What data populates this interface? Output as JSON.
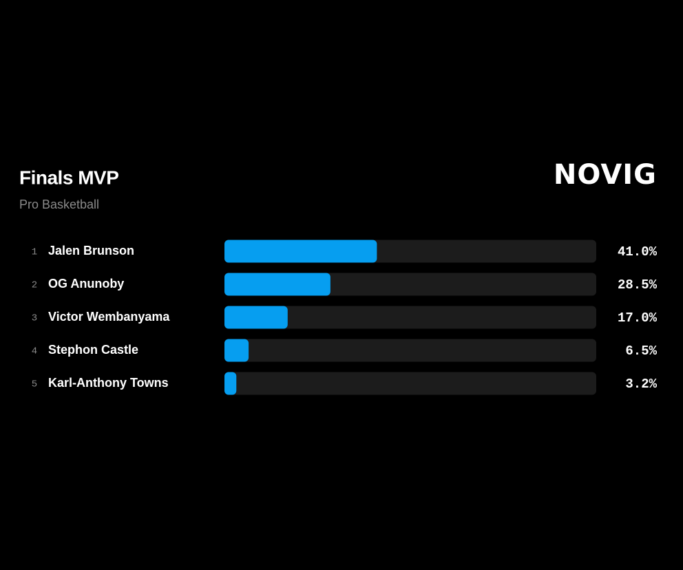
{
  "chart_data": {
    "type": "bar",
    "orientation": "horizontal",
    "title": "Finals MVP",
    "subtitle": "Pro Basketball",
    "logo": "NOVIG",
    "ranks": [
      "1",
      "2",
      "3",
      "4",
      "5"
    ],
    "categories": [
      "Jalen Brunson",
      "OG Anunoby",
      "Victor Wembanyama",
      "Stephon Castle",
      "Karl-Anthony Towns"
    ],
    "values": [
      41.0,
      28.5,
      17.0,
      6.5,
      3.2
    ],
    "value_labels": [
      "41.0%",
      "28.5%",
      "17.0%",
      "6.5%",
      "3.2%"
    ],
    "xlim": [
      0,
      100
    ],
    "color": "#069ef0",
    "track_color": "#1c1c1c"
  }
}
